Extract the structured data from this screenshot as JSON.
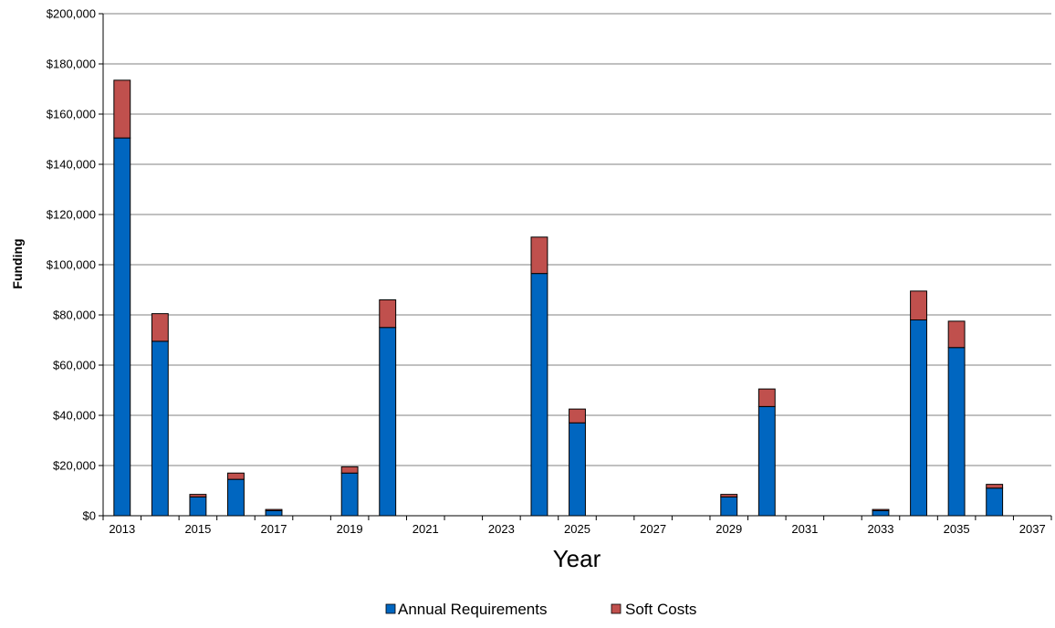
{
  "chart_data": {
    "type": "bar",
    "stacked": true,
    "xlabel": "Year",
    "ylabel": "Funding",
    "ylim": [
      0,
      200000
    ],
    "y_ticks": [
      "$0",
      "$20,000",
      "$40,000",
      "$60,000",
      "$80,000",
      "$100,000",
      "$120,000",
      "$140,000",
      "$160,000",
      "$180,000",
      "$200,000"
    ],
    "x_ticks": [
      "2013",
      "2015",
      "2017",
      "2019",
      "2021",
      "2023",
      "2025",
      "2027",
      "2029",
      "2031",
      "2033",
      "2035",
      "2037"
    ],
    "grid": true,
    "legend_position": "bottom",
    "categories": [
      "2013",
      "2014",
      "2015",
      "2016",
      "2017",
      "2018",
      "2019",
      "2020",
      "2021",
      "2022",
      "2023",
      "2024",
      "2025",
      "2026",
      "2027",
      "2028",
      "2029",
      "2030",
      "2031",
      "2032",
      "2033",
      "2034",
      "2035",
      "2036",
      "2037"
    ],
    "series": [
      {
        "name": "Annual Requirements",
        "color": "#0066c0",
        "values": [
          150500,
          69500,
          7500,
          14500,
          2000,
          0,
          17000,
          75000,
          0,
          0,
          0,
          96500,
          37000,
          0,
          0,
          0,
          7500,
          43500,
          0,
          0,
          2000,
          78000,
          67000,
          11000,
          0
        ]
      },
      {
        "name": "Soft Costs",
        "color": "#c0504d",
        "values": [
          23000,
          11000,
          1000,
          2500,
          500,
          0,
          2500,
          11000,
          0,
          0,
          0,
          14500,
          5500,
          0,
          0,
          0,
          1000,
          7000,
          0,
          0,
          500,
          11500,
          10500,
          1500,
          0
        ]
      }
    ]
  }
}
